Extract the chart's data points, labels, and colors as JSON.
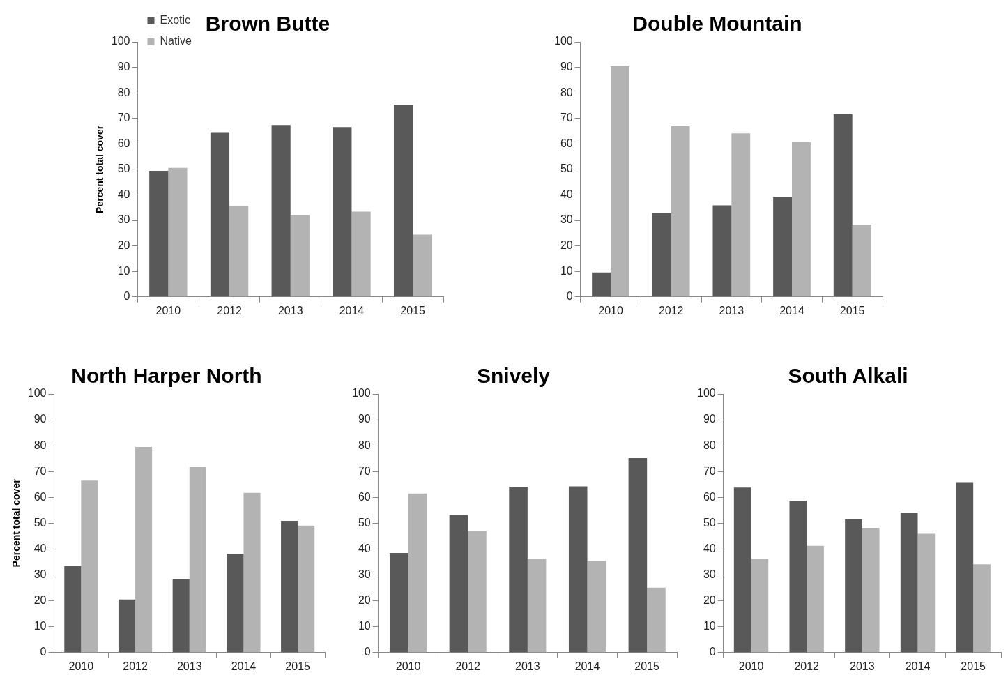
{
  "chart_data": [
    {
      "type": "bar",
      "title": "Brown Butte",
      "ylabel": "Percent total cover",
      "categories": [
        "2010",
        "2012",
        "2013",
        "2014",
        "2015"
      ],
      "series": [
        {
          "name": "Exotic",
          "color": "#595959",
          "values": [
            49.4,
            64.3,
            67.4,
            66.6,
            75.3
          ]
        },
        {
          "name": "Native",
          "color": "#b3b3b3",
          "values": [
            50.6,
            35.7,
            32.1,
            33.4,
            24.4
          ]
        }
      ],
      "ylim": [
        0,
        100
      ],
      "yticks": [
        0,
        10,
        20,
        30,
        40,
        50,
        60,
        70,
        80,
        90,
        100
      ],
      "grid": false,
      "legend": "top left"
    },
    {
      "type": "bar",
      "title": "Double Mountain",
      "categories": [
        "2010",
        "2012",
        "2013",
        "2014",
        "2015"
      ],
      "series": [
        {
          "color": "#595959",
          "values": [
            9.6,
            32.8,
            35.9,
            39.1,
            71.6
          ]
        },
        {
          "color": "#b3b3b3",
          "values": [
            90.4,
            66.9,
            64.1,
            60.7,
            28.4
          ]
        }
      ],
      "ylim": [
        0,
        100
      ],
      "yticks": [
        0,
        10,
        20,
        30,
        40,
        50,
        60,
        70,
        80,
        90,
        100
      ],
      "grid": false,
      "legend": false
    },
    {
      "type": "bar",
      "title": "North Harper North",
      "ylabel": "Percent total cover",
      "categories": [
        "2010",
        "2012",
        "2013",
        "2014",
        "2015"
      ],
      "series": [
        {
          "color": "#595959",
          "values": [
            33.5,
            20.5,
            28.3,
            38.2,
            50.9
          ]
        },
        {
          "color": "#b3b3b3",
          "values": [
            66.5,
            79.5,
            71.7,
            61.8,
            49.1
          ]
        }
      ],
      "ylim": [
        0,
        100
      ],
      "yticks": [
        0,
        10,
        20,
        30,
        40,
        50,
        60,
        70,
        80,
        90,
        100
      ],
      "grid": false,
      "legend": false
    },
    {
      "type": "bar",
      "title": "Snively",
      "categories": [
        "2010",
        "2012",
        "2013",
        "2014",
        "2015"
      ],
      "series": [
        {
          "color": "#595959",
          "values": [
            38.5,
            53.2,
            64.1,
            64.3,
            75.2
          ]
        },
        {
          "color": "#b3b3b3",
          "values": [
            61.5,
            47.0,
            36.2,
            35.4,
            25.1
          ]
        }
      ],
      "ylim": [
        0,
        100
      ],
      "yticks": [
        0,
        10,
        20,
        30,
        40,
        50,
        60,
        70,
        80,
        90,
        100
      ],
      "grid": false,
      "legend": false
    },
    {
      "type": "bar",
      "title": "South Alkali",
      "categories": [
        "2010",
        "2012",
        "2013",
        "2014",
        "2015"
      ],
      "series": [
        {
          "color": "#595959",
          "values": [
            63.8,
            58.7,
            51.5,
            54.1,
            65.9
          ]
        },
        {
          "color": "#b3b3b3",
          "values": [
            36.2,
            41.3,
            48.2,
            45.9,
            34.1
          ]
        }
      ],
      "ylim": [
        0,
        100
      ],
      "yticks": [
        0,
        10,
        20,
        30,
        40,
        50,
        60,
        70,
        80,
        90,
        100
      ],
      "grid": false,
      "legend": false
    }
  ]
}
